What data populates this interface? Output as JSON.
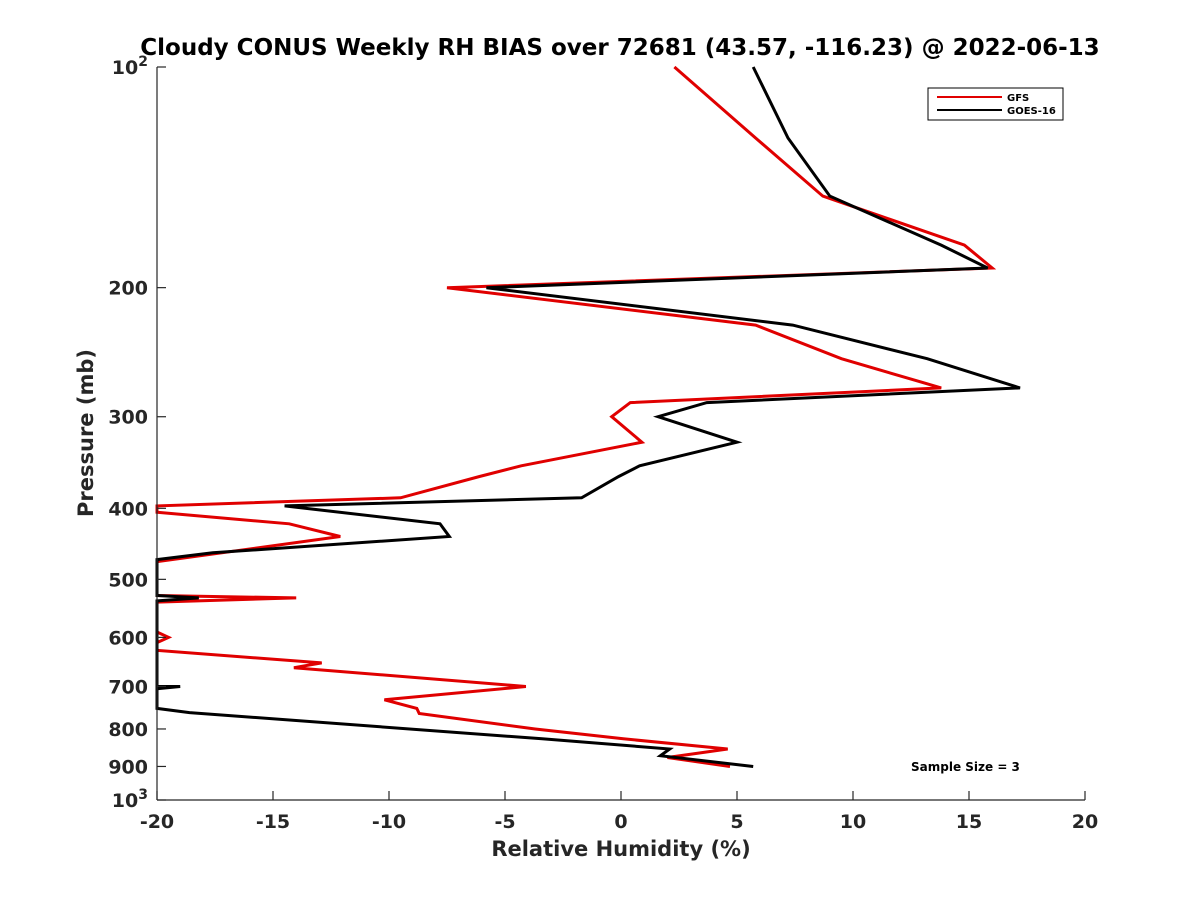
{
  "chart_data": {
    "type": "line",
    "title": "Cloudy CONUS Weekly RH BIAS over 72681 (43.57, -116.23) @ 2022-06-13",
    "xlabel": "Relative Humidity (%)",
    "ylabel": "Pressure (mb)",
    "xlim": [
      -20,
      20
    ],
    "ylim": [
      100,
      1000
    ],
    "y_scale": "log",
    "y_reversed": true,
    "grid": false,
    "legend_position": "top-right",
    "x_ticks": [
      "-20",
      "-15",
      "-10",
      "-5",
      "0",
      "5",
      "10",
      "15",
      "20"
    ],
    "y_ticks": [
      {
        "value": 100,
        "base": "10",
        "exp": "2"
      },
      {
        "value": 200,
        "label": "200"
      },
      {
        "value": 300,
        "label": "300"
      },
      {
        "value": 400,
        "label": "400"
      },
      {
        "value": 500,
        "label": "500"
      },
      {
        "value": 600,
        "label": "600"
      },
      {
        "value": 700,
        "label": "700"
      },
      {
        "value": 800,
        "label": "800"
      },
      {
        "value": 900,
        "label": "900"
      },
      {
        "value": 1000,
        "base": "10",
        "exp": "3"
      }
    ],
    "annotation": "Sample Size = 3",
    "series": [
      {
        "name": "GFS",
        "color": "#e00000",
        "points": [
          [
            2.3,
            100
          ],
          [
            5.8,
            125
          ],
          [
            8.7,
            150
          ],
          [
            14.8,
            175
          ],
          [
            16.0,
            188
          ],
          [
            -7.5,
            200
          ],
          [
            5.8,
            225
          ],
          [
            9.5,
            250
          ],
          [
            13.8,
            274
          ],
          [
            0.4,
            287
          ],
          [
            -0.4,
            300
          ],
          [
            0.9,
            325
          ],
          [
            -4.3,
            350
          ],
          [
            -6.1,
            362
          ],
          [
            -9.5,
            387
          ],
          [
            -20.0,
            397
          ],
          [
            -20.0,
            405
          ],
          [
            -14.3,
            420
          ],
          [
            -12.1,
            437
          ],
          [
            -20.0,
            473
          ],
          [
            -20.0,
            526
          ],
          [
            -14.0,
            530
          ],
          [
            -20.0,
            537
          ],
          [
            -20.0,
            590
          ],
          [
            -19.5,
            600
          ],
          [
            -20.0,
            610
          ],
          [
            -20.0,
            625
          ],
          [
            -12.9,
            650
          ],
          [
            -14.1,
            660
          ],
          [
            -4.1,
            700
          ],
          [
            -10.2,
            730
          ],
          [
            -8.8,
            750
          ],
          [
            -8.7,
            762
          ],
          [
            -3.7,
            800
          ],
          [
            0.1,
            825
          ],
          [
            4.6,
            852
          ],
          [
            2.0,
            875
          ],
          [
            4.7,
            900
          ]
        ]
      },
      {
        "name": "GOES-16",
        "color": "#000000",
        "points": [
          [
            5.7,
            100
          ],
          [
            7.2,
            125
          ],
          [
            9.0,
            150
          ],
          [
            13.8,
            175
          ],
          [
            15.8,
            188
          ],
          [
            -5.8,
            200
          ],
          [
            7.4,
            225
          ],
          [
            13.2,
            250
          ],
          [
            17.2,
            274
          ],
          [
            3.7,
            287
          ],
          [
            1.6,
            300
          ],
          [
            5.0,
            325
          ],
          [
            0.8,
            350
          ],
          [
            -0.1,
            362
          ],
          [
            -1.7,
            387
          ],
          [
            -14.5,
            397
          ],
          [
            -7.8,
            420
          ],
          [
            -7.4,
            437
          ],
          [
            -17.6,
            460
          ],
          [
            -20.0,
            470
          ],
          [
            -20.0,
            526
          ],
          [
            -18.2,
            530
          ],
          [
            -20.0,
            535
          ],
          [
            -20.0,
            537
          ],
          [
            -20.0,
            700
          ],
          [
            -19.0,
            700
          ],
          [
            -20.0,
            705
          ],
          [
            -20.0,
            750
          ],
          [
            -18.6,
            760
          ],
          [
            -3.4,
            825
          ],
          [
            2.1,
            852
          ],
          [
            1.7,
            870
          ],
          [
            5.7,
            900
          ]
        ]
      }
    ]
  }
}
